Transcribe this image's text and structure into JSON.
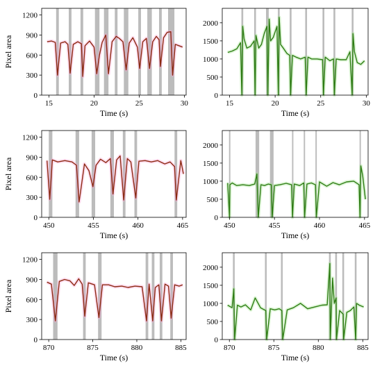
{
  "figure": {
    "colors": {
      "red_line": "#8b2a12",
      "red_fill": "#ff9fd0",
      "green_line": "#2e7d14",
      "green_fill": "#9fe38a",
      "shade": "#b5b5b5"
    }
  },
  "chart_data": [
    {
      "type": "line",
      "panel": "top-left",
      "title": "",
      "xlabel": "Time (s)",
      "ylabel": "Pixel area",
      "xlim": [
        14.2,
        30.2
      ],
      "ylim": [
        0,
        1300
      ],
      "xticks": [
        15,
        20,
        25,
        30
      ],
      "yticks": [
        0,
        300,
        600,
        900,
        1200
      ],
      "shaded_intervals": [
        [
          15.8,
          16.1
        ],
        [
          17.2,
          17.5
        ],
        [
          18.5,
          18.8
        ],
        [
          20.1,
          20.6
        ],
        [
          21.1,
          21.6
        ],
        [
          22.3,
          22.6
        ],
        [
          23.3,
          23.8
        ],
        [
          24.9,
          25.2
        ],
        [
          25.9,
          26.4
        ],
        [
          27.2,
          27.5
        ],
        [
          28.2,
          28.9
        ]
      ],
      "series": [
        {
          "x": [
            14.8,
            15.3,
            15.7,
            15.95,
            16.3,
            16.8,
            17.1,
            17.35,
            17.7,
            18.2,
            18.6,
            18.75,
            19.0,
            19.5,
            20.0,
            20.3,
            20.6,
            20.9,
            21.3,
            21.6,
            22.0,
            22.45,
            22.8,
            23.2,
            23.55,
            23.9,
            24.3,
            24.8,
            25.05,
            25.4,
            25.8,
            26.15,
            26.5,
            26.9,
            27.2,
            27.35,
            27.7,
            28.1,
            28.5,
            28.7,
            29.0,
            29.4,
            29.8
          ],
          "y": [
            800,
            810,
            790,
            300,
            780,
            800,
            760,
            330,
            760,
            800,
            770,
            280,
            740,
            810,
            720,
            320,
            600,
            790,
            900,
            320,
            800,
            880,
            850,
            800,
            380,
            780,
            860,
            720,
            400,
            800,
            850,
            400,
            800,
            880,
            830,
            430,
            860,
            940,
            950,
            300,
            760,
            740,
            720
          ]
        }
      ]
    },
    {
      "type": "line",
      "panel": "top-right",
      "title": "",
      "xlabel": "Time (s)",
      "ylabel": "",
      "xlim": [
        14.2,
        30.2
      ],
      "ylim": [
        0,
        2400
      ],
      "xticks": [
        15,
        20,
        25,
        30
      ],
      "yticks": [
        0,
        500,
        1000,
        1500,
        2000
      ],
      "shaded_intervals": [
        [
          16.3,
          16.5
        ],
        [
          17.7,
          17.9
        ],
        [
          19.0,
          19.3
        ],
        [
          20.3,
          20.5
        ],
        [
          21.6,
          21.8
        ],
        [
          23.3,
          23.5
        ],
        [
          25.2,
          25.4
        ],
        [
          26.4,
          26.6
        ],
        [
          28.4,
          28.6
        ]
      ],
      "series": [
        {
          "x": [
            14.8,
            15.3,
            15.8,
            16.2,
            16.35,
            16.45,
            16.6,
            16.9,
            17.3,
            17.7,
            17.8,
            17.9,
            18.2,
            18.5,
            18.8,
            19.1,
            19.2,
            19.35,
            19.5,
            19.8,
            20.2,
            20.35,
            20.45,
            20.6,
            20.9,
            21.3,
            21.6,
            21.7,
            21.9,
            22.3,
            22.8,
            23.3,
            23.4,
            23.6,
            24.0,
            24.6,
            25.2,
            25.3,
            25.5,
            26.0,
            26.4,
            26.5,
            26.7,
            27.2,
            27.8,
            28.2,
            28.45,
            28.55,
            28.7,
            29.0,
            29.4,
            29.8
          ],
          "y": [
            1180,
            1220,
            1280,
            1450,
            0,
            1900,
            1550,
            1300,
            1350,
            1500,
            0,
            1650,
            1300,
            1400,
            1700,
            1900,
            0,
            2100,
            1500,
            1600,
            1900,
            0,
            2150,
            1400,
            1300,
            1150,
            1100,
            0,
            1100,
            1050,
            1000,
            1050,
            0,
            1050,
            1000,
            1000,
            980,
            0,
            1050,
            950,
            1000,
            0,
            1000,
            980,
            980,
            1200,
            0,
            1700,
            1200,
            900,
            850,
            950
          ]
        }
      ]
    },
    {
      "type": "line",
      "panel": "middle-left",
      "title": "",
      "xlabel": "Time (s)",
      "ylabel": "Pixel area",
      "xlim": [
        449.2,
        465.4
      ],
      "ylim": [
        0,
        1300
      ],
      "xticks": [
        450,
        455,
        460,
        465
      ],
      "yticks": [
        0,
        300,
        600,
        900,
        1200
      ],
      "shaded_intervals": [
        [
          450.0,
          450.4
        ],
        [
          453.0,
          453.4
        ],
        [
          454.8,
          455.2
        ],
        [
          456.9,
          457.3
        ],
        [
          458.3,
          458.6
        ],
        [
          459.6,
          459.9
        ],
        [
          464.1,
          464.4
        ]
      ],
      "series": [
        {
          "x": [
            449.8,
            450.1,
            450.4,
            451.0,
            451.8,
            452.6,
            453.1,
            453.4,
            454.0,
            454.5,
            454.95,
            455.3,
            455.8,
            456.4,
            456.9,
            457.2,
            457.6,
            458.0,
            458.4,
            458.8,
            459.2,
            459.75,
            460.1,
            460.8,
            461.5,
            462.2,
            463.0,
            463.6,
            464.1,
            464.3,
            464.8,
            465.1
          ],
          "y": [
            850,
            270,
            860,
            830,
            850,
            830,
            780,
            230,
            800,
            700,
            460,
            780,
            870,
            820,
            880,
            350,
            860,
            920,
            260,
            880,
            830,
            290,
            840,
            850,
            830,
            850,
            800,
            830,
            760,
            260,
            850,
            650
          ]
        }
      ]
    },
    {
      "type": "line",
      "panel": "middle-right",
      "title": "",
      "xlabel": "Time (s)",
      "ylabel": "",
      "xlim": [
        449.2,
        465.4
      ],
      "ylim": [
        0,
        2400
      ],
      "xticks": [
        450,
        455,
        460,
        465
      ],
      "yticks": [
        0,
        500,
        1000,
        1500,
        2000
      ],
      "shaded_intervals": [
        [
          449.95,
          450.1
        ],
        [
          452.9,
          453.3
        ],
        [
          454.5,
          454.9
        ],
        [
          456.95,
          457.1
        ],
        [
          458.25,
          458.4
        ],
        [
          459.55,
          459.7
        ],
        [
          464.45,
          464.6
        ]
      ],
      "series": [
        {
          "x": [
            449.8,
            450.0,
            450.05,
            450.3,
            450.8,
            451.5,
            452.2,
            452.8,
            453.05,
            453.2,
            453.5,
            453.9,
            454.3,
            454.65,
            454.75,
            455.0,
            455.6,
            456.3,
            456.9,
            457.0,
            457.2,
            457.8,
            458.25,
            458.35,
            458.6,
            459.1,
            459.55,
            459.65,
            460.0,
            460.8,
            461.5,
            462.2,
            463.0,
            463.8,
            464.4,
            464.5,
            464.6,
            464.8,
            465.1
          ],
          "y": [
            950,
            0,
            900,
            950,
            880,
            900,
            880,
            920,
            1200,
            0,
            900,
            880,
            920,
            900,
            0,
            880,
            900,
            940,
            900,
            0,
            920,
            880,
            950,
            0,
            920,
            950,
            900,
            0,
            980,
            860,
            960,
            900,
            980,
            1000,
            900,
            0,
            1420,
            1150,
            500
          ]
        }
      ]
    },
    {
      "type": "line",
      "panel": "bottom-left",
      "title": "",
      "xlabel": "Time (s)",
      "ylabel": "Pixel area",
      "xlim": [
        869.2,
        885.6
      ],
      "ylim": [
        0,
        1300
      ],
      "xticks": [
        870,
        875,
        880,
        885
      ],
      "yticks": [
        0,
        300,
        600,
        900,
        1200
      ],
      "shaded_intervals": [
        [
          870.5,
          871.0
        ],
        [
          873.9,
          874.2
        ],
        [
          875.6,
          876.0
        ],
        [
          881.0,
          881.3
        ],
        [
          881.7,
          882.0
        ],
        [
          882.6,
          882.9
        ],
        [
          883.8,
          884.1
        ]
      ],
      "series": [
        {
          "x": [
            869.8,
            870.3,
            870.75,
            871.2,
            871.8,
            872.4,
            872.9,
            873.4,
            873.8,
            874.1,
            874.5,
            875.2,
            875.7,
            876.1,
            876.8,
            877.5,
            878.3,
            879.0,
            879.8,
            880.6,
            881.1,
            881.4,
            881.8,
            882.1,
            882.5,
            882.8,
            883.2,
            883.6,
            883.9,
            884.3,
            884.8,
            885.2
          ],
          "y": [
            860,
            830,
            280,
            870,
            900,
            880,
            810,
            910,
            830,
            350,
            850,
            820,
            330,
            820,
            820,
            790,
            800,
            780,
            800,
            790,
            280,
            830,
            280,
            780,
            820,
            280,
            830,
            800,
            320,
            820,
            800,
            820
          ]
        }
      ]
    },
    {
      "type": "line",
      "panel": "bottom-right",
      "title": "",
      "xlabel": "Time (s)",
      "ylabel": "",
      "xlim": [
        869.2,
        885.6
      ],
      "ylim": [
        0,
        2400
      ],
      "xticks": [
        870,
        875,
        880,
        885
      ],
      "yticks": [
        0,
        500,
        1000,
        1500,
        2000
      ],
      "shaded_intervals": [
        [
          870.4,
          870.6
        ],
        [
          874.0,
          874.2
        ],
        [
          875.8,
          876.0
        ],
        [
          881.2,
          881.4
        ],
        [
          881.9,
          882.1
        ],
        [
          882.7,
          882.9
        ],
        [
          884.1,
          884.3
        ]
      ],
      "series": [
        {
          "x": [
            869.8,
            870.3,
            870.5,
            870.6,
            870.9,
            871.3,
            871.8,
            872.4,
            872.9,
            873.5,
            874.1,
            874.2,
            874.6,
            875.1,
            875.6,
            875.9,
            876.0,
            876.5,
            877.2,
            878.0,
            878.8,
            879.6,
            880.4,
            881.0,
            881.3,
            881.35,
            881.6,
            881.8,
            882.0,
            882.05,
            882.4,
            882.8,
            882.85,
            883.2,
            883.6,
            884.0,
            884.2,
            884.3,
            884.6,
            885.1
          ],
          "y": [
            950,
            880,
            1400,
            0,
            950,
            900,
            960,
            820,
            1150,
            880,
            800,
            0,
            850,
            820,
            850,
            800,
            0,
            820,
            880,
            1000,
            850,
            900,
            950,
            960,
            2100,
            0,
            1700,
            1000,
            1150,
            0,
            800,
            700,
            0,
            750,
            800,
            900,
            0,
            1000,
            950,
            900
          ]
        }
      ]
    }
  ]
}
